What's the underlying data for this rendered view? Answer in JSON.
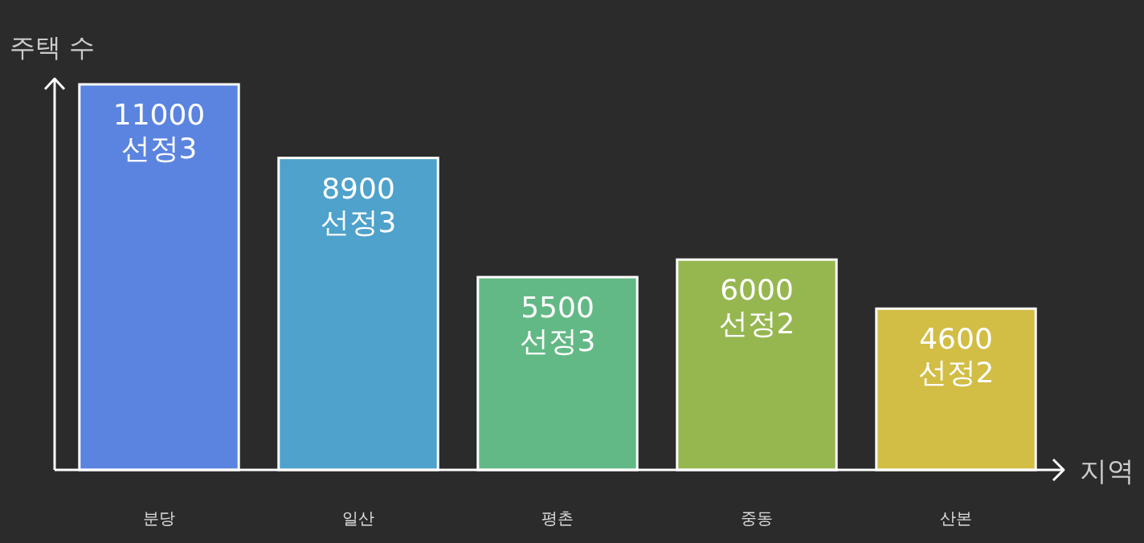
{
  "chart_data": {
    "type": "bar",
    "xlabel": "지역",
    "ylabel": "주택 수",
    "categories": [
      "분당",
      "일산",
      "평촌",
      "중동",
      "산본"
    ],
    "values": [
      11000,
      8900,
      5500,
      6000,
      4600
    ],
    "colors": [
      "#5b84e0",
      "#4ea2cc",
      "#63b985",
      "#96b750",
      "#d2bd45"
    ],
    "value_labels": [
      "11000\n선정3",
      "8900\n선정3",
      "5500\n선정3",
      "6000\n선정2",
      "4600\n선정2"
    ]
  }
}
